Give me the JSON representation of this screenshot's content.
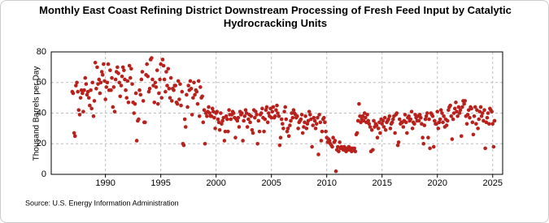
{
  "chart_data": {
    "type": "scatter",
    "title": "Monthly East Coast Refining District Downstream Processing of Fresh Feed Input by Catalytic Hydrocracking Units",
    "y_label": "Thousand Barrels per Day",
    "source": "Source: U.S. Energy Information Administration",
    "xlim": [
      1985.1,
      2025.9
    ],
    "xticks": [
      1990,
      1995,
      2000,
      2005,
      2010,
      2015,
      2020,
      2025
    ],
    "ylim": [
      0,
      80
    ],
    "yticks": [
      0,
      20,
      40,
      60,
      80
    ],
    "grid": true,
    "series": [
      {
        "color": "#b8211c",
        "x": [
          1987,
          1987.08,
          1987.17,
          1987.25,
          1987.33,
          1987.42,
          1987.5,
          1987.58,
          1987.67,
          1987.75,
          1987.83,
          1987.92,
          1988,
          1988.08,
          1988.17,
          1988.25,
          1988.33,
          1988.42,
          1988.5,
          1988.58,
          1988.67,
          1988.75,
          1988.83,
          1988.92,
          1989,
          1989.08,
          1989.17,
          1989.25,
          1989.33,
          1989.42,
          1989.5,
          1989.58,
          1989.67,
          1989.75,
          1989.83,
          1989.92,
          1990,
          1990.08,
          1990.17,
          1990.25,
          1990.33,
          1990.42,
          1990.5,
          1990.58,
          1990.67,
          1990.75,
          1990.83,
          1990.92,
          1991,
          1991.08,
          1991.17,
          1991.25,
          1991.33,
          1991.42,
          1991.5,
          1991.58,
          1991.67,
          1991.75,
          1991.83,
          1991.92,
          1992,
          1992.08,
          1992.17,
          1992.25,
          1992.33,
          1992.42,
          1992.5,
          1992.58,
          1992.67,
          1992.75,
          1992.83,
          1992.92,
          1993,
          1993.08,
          1993.17,
          1993.25,
          1993.33,
          1993.42,
          1993.5,
          1993.58,
          1993.67,
          1993.75,
          1993.83,
          1993.92,
          1994,
          1994.08,
          1994.17,
          1994.25,
          1994.33,
          1994.42,
          1994.5,
          1994.58,
          1994.67,
          1994.75,
          1994.83,
          1994.92,
          1995,
          1995.08,
          1995.17,
          1995.25,
          1995.33,
          1995.42,
          1995.5,
          1995.58,
          1995.67,
          1995.75,
          1995.83,
          1995.92,
          1996,
          1996.08,
          1996.17,
          1996.25,
          1996.33,
          1996.42,
          1996.5,
          1996.58,
          1996.67,
          1996.75,
          1996.83,
          1996.92,
          1997,
          1997.08,
          1997.17,
          1997.25,
          1997.33,
          1997.42,
          1997.5,
          1997.58,
          1997.67,
          1997.75,
          1997.83,
          1997.92,
          1998,
          1998.08,
          1998.17,
          1998.25,
          1998.33,
          1998.42,
          1998.5,
          1998.58,
          1998.67,
          1998.75,
          1998.83,
          1998.92,
          1999,
          1999.08,
          1999.17,
          1999.25,
          1999.33,
          1999.42,
          1999.5,
          1999.58,
          1999.67,
          1999.75,
          1999.83,
          1999.92,
          2000,
          2000.08,
          2000.17,
          2000.25,
          2000.33,
          2000.42,
          2000.5,
          2000.58,
          2000.67,
          2000.75,
          2000.83,
          2000.92,
          2001,
          2001.08,
          2001.17,
          2001.25,
          2001.33,
          2001.42,
          2001.5,
          2001.58,
          2001.67,
          2001.75,
          2001.83,
          2001.92,
          2002,
          2002.08,
          2002.17,
          2002.25,
          2002.33,
          2002.42,
          2002.5,
          2002.58,
          2002.67,
          2002.75,
          2002.83,
          2002.92,
          2003,
          2003.08,
          2003.17,
          2003.25,
          2003.33,
          2003.42,
          2003.5,
          2003.58,
          2003.67,
          2003.75,
          2003.83,
          2003.92,
          2004,
          2004.08,
          2004.17,
          2004.25,
          2004.33,
          2004.42,
          2004.5,
          2004.58,
          2004.67,
          2004.75,
          2004.83,
          2004.92,
          2005,
          2005.08,
          2005.17,
          2005.25,
          2005.33,
          2005.42,
          2005.5,
          2005.58,
          2005.67,
          2005.75,
          2005.83,
          2005.92,
          2006,
          2006.08,
          2006.17,
          2006.25,
          2006.33,
          2006.42,
          2006.5,
          2006.58,
          2006.67,
          2006.75,
          2006.83,
          2006.92,
          2007,
          2007.08,
          2007.17,
          2007.25,
          2007.33,
          2007.42,
          2007.5,
          2007.58,
          2007.67,
          2007.75,
          2007.83,
          2007.92,
          2008,
          2008.08,
          2008.17,
          2008.25,
          2008.33,
          2008.42,
          2008.5,
          2008.58,
          2008.67,
          2008.75,
          2008.83,
          2008.92,
          2009,
          2009.08,
          2009.17,
          2009.25,
          2009.33,
          2009.42,
          2009.5,
          2009.58,
          2009.67,
          2009.75,
          2009.83,
          2009.92,
          2010,
          2010.08,
          2010.17,
          2010.25,
          2010.33,
          2010.42,
          2010.5,
          2010.58,
          2010.67,
          2010.75,
          2010.83,
          2010.92,
          2011,
          2011.08,
          2011.17,
          2011.25,
          2011.33,
          2011.42,
          2011.5,
          2011.58,
          2011.67,
          2011.75,
          2011.83,
          2011.92,
          2012,
          2012.08,
          2012.17,
          2012.25,
          2012.33,
          2012.42,
          2012.5,
          2012.58,
          2012.67,
          2012.75,
          2012.83,
          2012.92,
          2013,
          2013.08,
          2013.17,
          2013.25,
          2013.33,
          2013.42,
          2013.5,
          2013.58,
          2013.67,
          2013.75,
          2013.83,
          2013.92,
          2014,
          2014.08,
          2014.17,
          2014.25,
          2014.33,
          2014.42,
          2014.5,
          2014.58,
          2014.67,
          2014.75,
          2014.83,
          2014.92,
          2015,
          2015.08,
          2015.17,
          2015.25,
          2015.33,
          2015.42,
          2015.5,
          2015.58,
          2015.67,
          2015.75,
          2015.83,
          2015.92,
          2016,
          2016.08,
          2016.17,
          2016.25,
          2016.33,
          2016.42,
          2016.5,
          2016.58,
          2016.67,
          2016.75,
          2016.83,
          2016.92,
          2017,
          2017.08,
          2017.17,
          2017.25,
          2017.33,
          2017.42,
          2017.5,
          2017.58,
          2017.67,
          2017.75,
          2017.83,
          2017.92,
          2018,
          2018.08,
          2018.17,
          2018.25,
          2018.33,
          2018.42,
          2018.5,
          2018.58,
          2018.67,
          2018.75,
          2018.83,
          2018.92,
          2019,
          2019.08,
          2019.17,
          2019.25,
          2019.33,
          2019.42,
          2019.5,
          2019.58,
          2019.67,
          2019.75,
          2019.83,
          2019.92,
          2020,
          2020.08,
          2020.17,
          2020.25,
          2020.33,
          2020.42,
          2020.5,
          2020.58,
          2020.67,
          2020.75,
          2020.83,
          2020.92,
          2021,
          2021.08,
          2021.17,
          2021.25,
          2021.33,
          2021.42,
          2021.5,
          2021.58,
          2021.67,
          2021.75,
          2021.83,
          2021.92,
          2022,
          2022.08,
          2022.17,
          2022.25,
          2022.33,
          2022.42,
          2022.5,
          2022.58,
          2022.67,
          2022.75,
          2022.83,
          2022.92,
          2023,
          2023.08,
          2023.17,
          2023.25,
          2023.33,
          2023.42,
          2023.5,
          2023.58,
          2023.67,
          2023.75,
          2023.83,
          2023.92,
          2024,
          2024.08,
          2024.17,
          2024.25,
          2024.33,
          2024.42,
          2024.5,
          2024.58,
          2024.67,
          2024.75,
          2024.83,
          2024.92,
          2025,
          2025.08,
          2025.17
        ],
        "values": [
          54,
          53,
          27,
          25,
          58,
          60,
          54,
          42,
          39,
          50,
          55,
          53,
          41,
          55,
          63,
          59,
          52,
          54,
          50,
          45,
          55,
          43,
          60,
          38,
          48,
          73,
          56,
          70,
          59,
          62,
          53,
          60,
          67,
          65,
          72,
          61,
          49,
          57,
          60,
          72,
          55,
          68,
          55,
          63,
          44,
          57,
          41,
          62,
          67,
          70,
          66,
          60,
          51,
          58,
          64,
          70,
          68,
          62,
          55,
          50,
          61,
          47,
          71,
          63,
          69,
          59,
          47,
          40,
          46,
          53,
          22,
          35,
          36,
          55,
          52,
          62,
          67,
          48,
          34,
          34,
          65,
          72,
          64,
          54,
          56,
          75,
          76,
          62,
          58,
          47,
          60,
          57,
          68,
          46,
          53,
          62,
          72,
          50,
          75,
          71,
          62,
          54,
          67,
          58,
          69,
          56,
          50,
          63,
          48,
          56,
          55,
          58,
          58,
          47,
          46,
          61,
          49,
          59,
          45,
          54,
          20,
          19,
          36,
          31,
          52,
          44,
          58,
          55,
          61,
          56,
          39,
          50,
          60,
          52,
          55,
          54,
          46,
          61,
          38,
          57,
          50,
          51,
          34,
          42,
          20,
          40,
          38,
          41,
          44,
          40,
          38,
          38,
          43,
          41,
          37,
          30,
          40,
          41,
          36,
          34,
          29,
          40,
          33,
          35,
          37,
          22,
          28,
          38,
          36,
          28,
          42,
          39,
          36,
          39,
          41,
          40,
          37,
          24,
          36,
          35,
          37,
          31,
          41,
          39,
          40,
          22,
          35,
          38,
          42,
          40,
          31,
          36,
          39,
          34,
          38,
          29,
          27,
          42,
          37,
          41,
          39,
          20,
          35,
          28,
          39,
          40,
          43,
          37,
          28,
          36,
          42,
          44,
          34,
          40,
          38,
          43,
          37,
          41,
          44,
          37,
          38,
          42,
          45,
          40,
          38,
          19,
          24,
          36,
          33,
          30,
          41,
          44,
          36,
          28,
          30,
          25,
          32,
          35,
          40,
          37,
          42,
          40,
          39,
          37,
          38,
          30,
          34,
          35,
          36,
          39,
          27,
          31,
          34,
          38,
          30,
          33,
          35,
          41,
          39,
          36,
          18,
          32,
          37,
          35,
          30,
          33,
          37,
          13,
          39,
          34,
          22,
          28,
          36,
          37,
          34,
          28,
          24,
          21,
          23,
          22,
          20,
          19,
          18,
          24,
          21,
          22,
          2,
          16,
          18,
          15,
          21,
          17,
          18,
          17,
          16,
          18,
          17,
          15,
          17,
          16,
          18,
          16,
          17,
          15,
          17,
          16,
          17,
          15,
          26,
          27,
          35,
          46,
          38,
          34,
          36,
          38,
          35,
          40,
          37,
          34,
          39,
          35,
          33,
          31,
          15,
          29,
          16,
          35,
          31,
          33,
          32,
          24,
          30,
          34,
          27,
          36,
          33,
          35,
          31,
          37,
          29,
          34,
          35,
          36,
          38,
          30,
          33,
          34,
          36,
          38,
          27,
          39,
          40,
          19,
          21,
          36,
          33,
          34,
          34,
          31,
          35,
          39,
          34,
          27,
          37,
          38,
          35,
          36,
          41,
          30,
          34,
          33,
          39,
          37,
          35,
          38,
          35,
          39,
          37,
          33,
          24,
          20,
          32,
          36,
          38,
          40,
          24,
          36,
          17,
          40,
          39,
          38,
          18,
          35,
          33,
          33,
          41,
          30,
          34,
          36,
          42,
          40,
          34,
          38,
          31,
          36,
          32,
          35,
          42,
          44,
          45,
          38,
          23,
          36,
          40,
          43,
          47,
          41,
          38,
          44,
          40,
          42,
          25,
          44,
          48,
          46,
          48,
          38,
          33,
          39,
          42,
          37,
          44,
          43,
          34,
          26,
          38,
          44,
          33,
          42,
          30,
          36,
          41,
          44,
          38,
          40,
          35,
          42,
          17,
          34,
          37,
          40,
          33,
          43,
          42,
          41,
          33,
          18,
          35
        ]
      }
    ]
  }
}
